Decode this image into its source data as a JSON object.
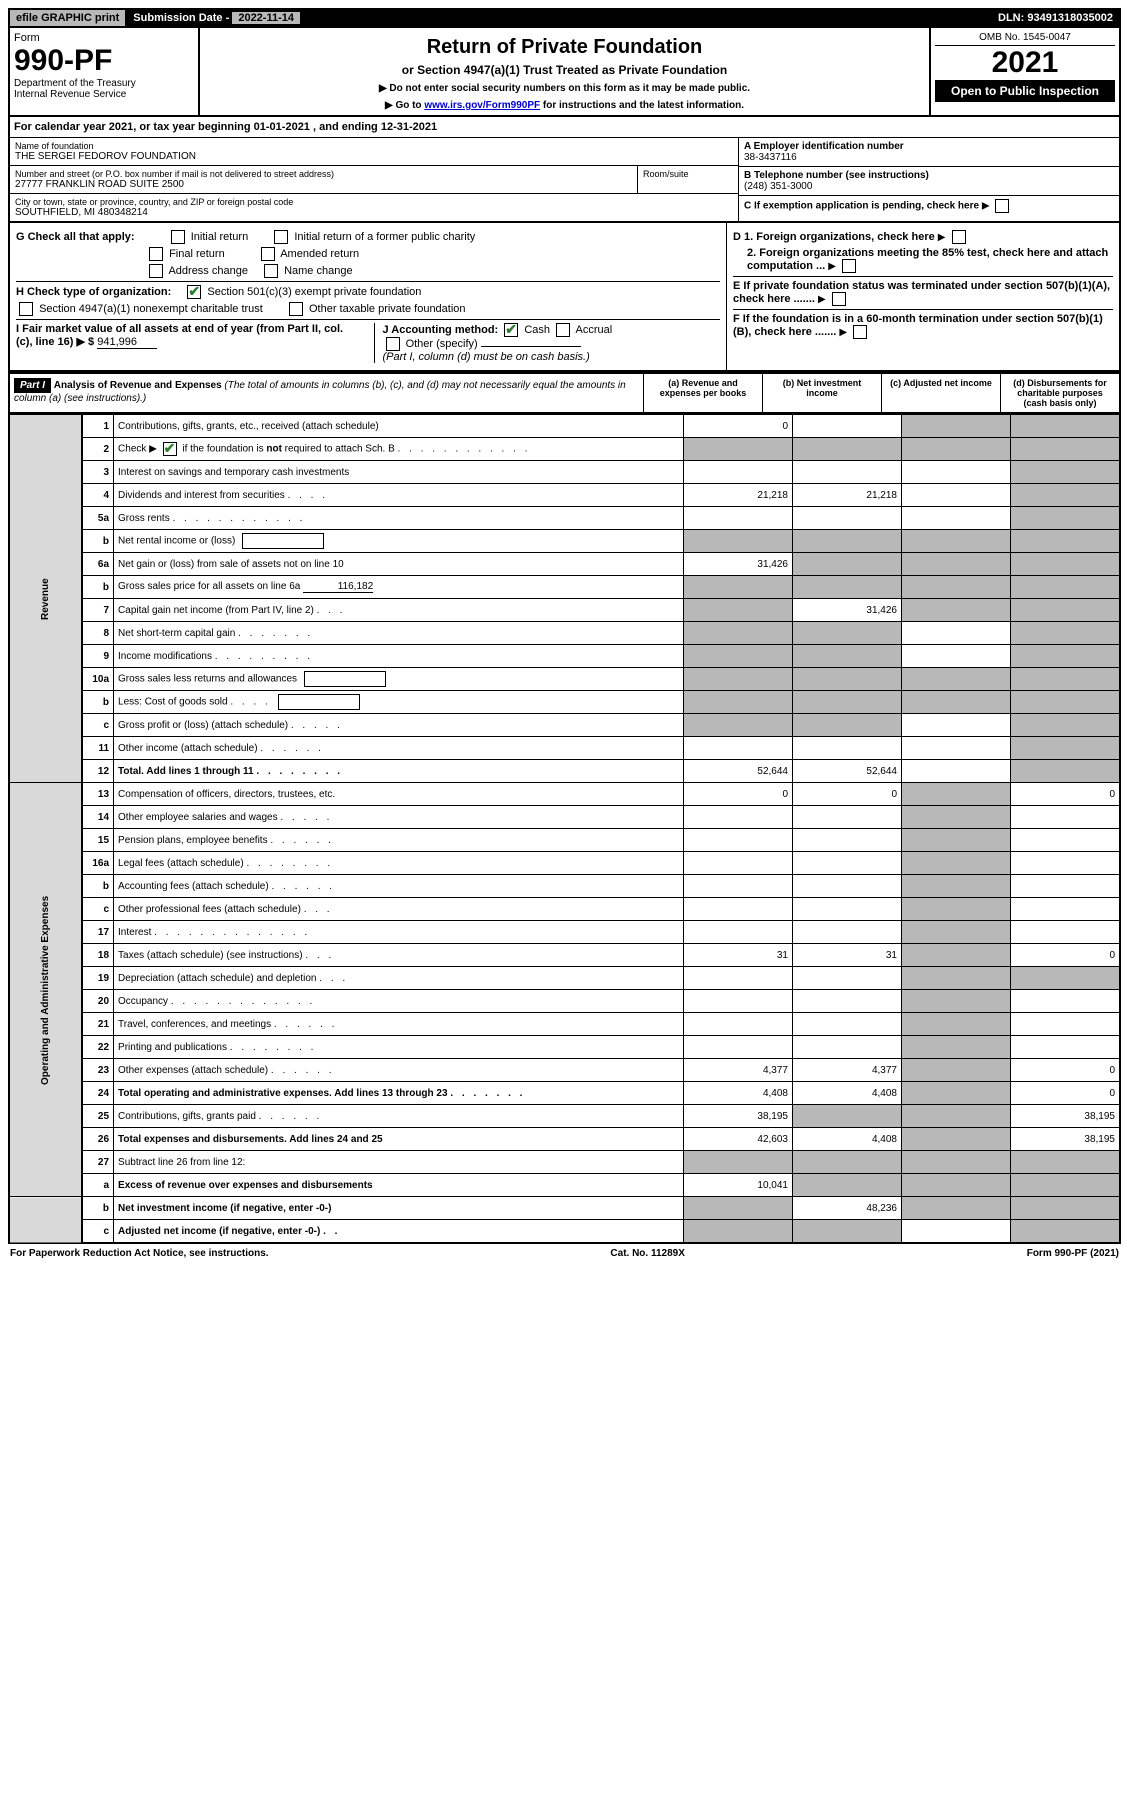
{
  "top_bar": {
    "efile": "efile GRAPHIC print",
    "subdate_label": "Submission Date - ",
    "subdate_value": "2022-11-14",
    "dln": "DLN: 93491318035002"
  },
  "header": {
    "form_label": "Form",
    "form_no": "990-PF",
    "dept1": "Department of the Treasury",
    "dept2": "Internal Revenue Service",
    "title": "Return of Private Foundation",
    "subtitle": "or Section 4947(a)(1) Trust Treated as Private Foundation",
    "note1": "▶ Do not enter social security numbers on this form as it may be made public.",
    "note2_pre": "▶ Go to ",
    "note2_link": "www.irs.gov/Form990PF",
    "note2_post": " for instructions and the latest information.",
    "omb": "OMB No. 1545-0047",
    "year": "2021",
    "open": "Open to Public Inspection"
  },
  "calendar": {
    "text_pre": "For calendar year 2021, or tax year beginning ",
    "begin": "01-01-2021",
    "text_mid": " , and ending ",
    "end": "12-31-2021"
  },
  "entity": {
    "name_label": "Name of foundation",
    "name": "THE SERGEI FEDOROV FOUNDATION",
    "street_label": "Number and street (or P.O. box number if mail is not delivered to street address)",
    "street": "27777 FRANKLIN ROAD SUITE 2500",
    "room_label": "Room/suite",
    "city_label": "City or town, state or province, country, and ZIP or foreign postal code",
    "city": "SOUTHFIELD, MI  480348214",
    "a_label": "A Employer identification number",
    "a_value": "38-3437116",
    "b_label": "B Telephone number (see instructions)",
    "b_value": "(248) 351-3000",
    "c_label": "C If exemption application is pending, check here",
    "d1": "D 1. Foreign organizations, check here",
    "d2": "2. Foreign organizations meeting the 85% test, check here and attach computation ...",
    "e": "E  If private foundation status was terminated under section 507(b)(1)(A), check here .......",
    "f": "F  If the foundation is in a 60-month termination under section 507(b)(1)(B), check here .......",
    "g_label": "G Check all that apply:",
    "g_opts": {
      "initial": "Initial return",
      "initial_former": "Initial return of a former public charity",
      "final": "Final return",
      "amended": "Amended return",
      "addr": "Address change",
      "name": "Name change"
    },
    "h_label": "H Check type of organization:",
    "h1": "Section 501(c)(3) exempt private foundation",
    "h2": "Section 4947(a)(1) nonexempt charitable trust",
    "h3": "Other taxable private foundation",
    "i_label": "I Fair market value of all assets at end of year (from Part II, col. (c), line 16) ▶ $",
    "i_value": "941,996",
    "j_label": "J Accounting method:",
    "j_cash": "Cash",
    "j_accrual": "Accrual",
    "j_other": "Other (specify)",
    "j_note": "(Part I, column (d) must be on cash basis.)"
  },
  "part1": {
    "label": "Part I",
    "title": "Analysis of Revenue and Expenses",
    "title_note": " (The total of amounts in columns (b), (c), and (d) may not necessarily equal the amounts in column (a) (see instructions).)",
    "col_a": "(a) Revenue and expenses per books",
    "col_b": "(b) Net investment income",
    "col_c": "(c) Adjusted net income",
    "col_d": "(d) Disbursements for charitable purposes (cash basis only)",
    "side_rev": "Revenue",
    "side_exp": "Operating and Administrative Expenses"
  },
  "rows": [
    {
      "n": "1",
      "d": "sh",
      "a": "0",
      "b": "",
      "c": "sh"
    },
    {
      "n": "2",
      "d": "sh",
      "a": "sh",
      "b": "sh",
      "c": "sh",
      "checked": true
    },
    {
      "n": "3",
      "d": "sh",
      "a": "",
      "b": "",
      "c": ""
    },
    {
      "n": "4",
      "d": "sh",
      "a": "21,218",
      "b": "21,218",
      "c": ""
    },
    {
      "n": "5a",
      "d": "sh",
      "a": "",
      "b": "",
      "c": ""
    },
    {
      "n": "b",
      "d": "sh",
      "a": "sh",
      "b": "sh",
      "c": "sh",
      "box": true
    },
    {
      "n": "6a",
      "d": "sh",
      "a": "31,426",
      "b": "sh",
      "c": "sh"
    },
    {
      "n": "b",
      "d": "sh",
      "a": "sh",
      "b": "sh",
      "c": "sh",
      "inline_val": "116,182"
    },
    {
      "n": "7",
      "d": "sh",
      "a": "sh",
      "b": "31,426",
      "c": "sh"
    },
    {
      "n": "8",
      "d": "sh",
      "a": "sh",
      "b": "sh",
      "c": ""
    },
    {
      "n": "9",
      "d": "sh",
      "a": "sh",
      "b": "sh",
      "c": ""
    },
    {
      "n": "10a",
      "d": "sh",
      "a": "sh",
      "b": "sh",
      "c": "sh",
      "box": true
    },
    {
      "n": "b",
      "d": "sh",
      "a": "sh",
      "b": "sh",
      "c": "sh",
      "box": true
    },
    {
      "n": "c",
      "d": "sh",
      "a": "sh",
      "b": "sh",
      "c": ""
    },
    {
      "n": "11",
      "d": "sh",
      "a": "",
      "b": "",
      "c": ""
    },
    {
      "n": "12",
      "d": "sh",
      "a": "52,644",
      "b": "52,644",
      "c": "",
      "bold": true
    }
  ],
  "exp_rows": [
    {
      "n": "13",
      "d": "0",
      "a": "0",
      "b": "0",
      "c": "sh"
    },
    {
      "n": "14",
      "d": "",
      "a": "",
      "b": "",
      "c": "sh"
    },
    {
      "n": "15",
      "d": "",
      "a": "",
      "b": "",
      "c": "sh"
    },
    {
      "n": "16a",
      "d": "",
      "a": "",
      "b": "",
      "c": "sh"
    },
    {
      "n": "b",
      "d": "",
      "a": "",
      "b": "",
      "c": "sh"
    },
    {
      "n": "c",
      "d": "",
      "a": "",
      "b": "",
      "c": "sh"
    },
    {
      "n": "17",
      "d": "",
      "a": "",
      "b": "",
      "c": "sh"
    },
    {
      "n": "18",
      "d": "0",
      "a": "31",
      "b": "31",
      "c": "sh"
    },
    {
      "n": "19",
      "d": "sh",
      "a": "",
      "b": "",
      "c": "sh"
    },
    {
      "n": "20",
      "d": "",
      "a": "",
      "b": "",
      "c": "sh"
    },
    {
      "n": "21",
      "d": "",
      "a": "",
      "b": "",
      "c": "sh"
    },
    {
      "n": "22",
      "d": "",
      "a": "",
      "b": "",
      "c": "sh"
    },
    {
      "n": "23",
      "d": "0",
      "a": "4,377",
      "b": "4,377",
      "c": "sh"
    },
    {
      "n": "24",
      "d": "0",
      "a": "4,408",
      "b": "4,408",
      "c": "sh",
      "bold": true
    },
    {
      "n": "25",
      "d": "38,195",
      "a": "38,195",
      "b": "sh",
      "c": "sh"
    },
    {
      "n": "26",
      "d": "38,195",
      "a": "42,603",
      "b": "4,408",
      "c": "sh",
      "bold": true
    }
  ],
  "sub_rows": [
    {
      "n": "27",
      "d": "sh",
      "a": "sh",
      "b": "sh",
      "c": "sh"
    },
    {
      "n": "a",
      "d": "sh",
      "a": "10,041",
      "b": "sh",
      "c": "sh",
      "bold": true
    },
    {
      "n": "b",
      "d": "sh",
      "a": "sh",
      "b": "48,236",
      "c": "sh",
      "bold": true
    },
    {
      "n": "c",
      "d": "sh",
      "a": "sh",
      "b": "sh",
      "c": "",
      "bold": true
    }
  ],
  "footer": {
    "left": "For Paperwork Reduction Act Notice, see instructions.",
    "mid": "Cat. No. 11289X",
    "right": "Form 990-PF (2021)"
  }
}
